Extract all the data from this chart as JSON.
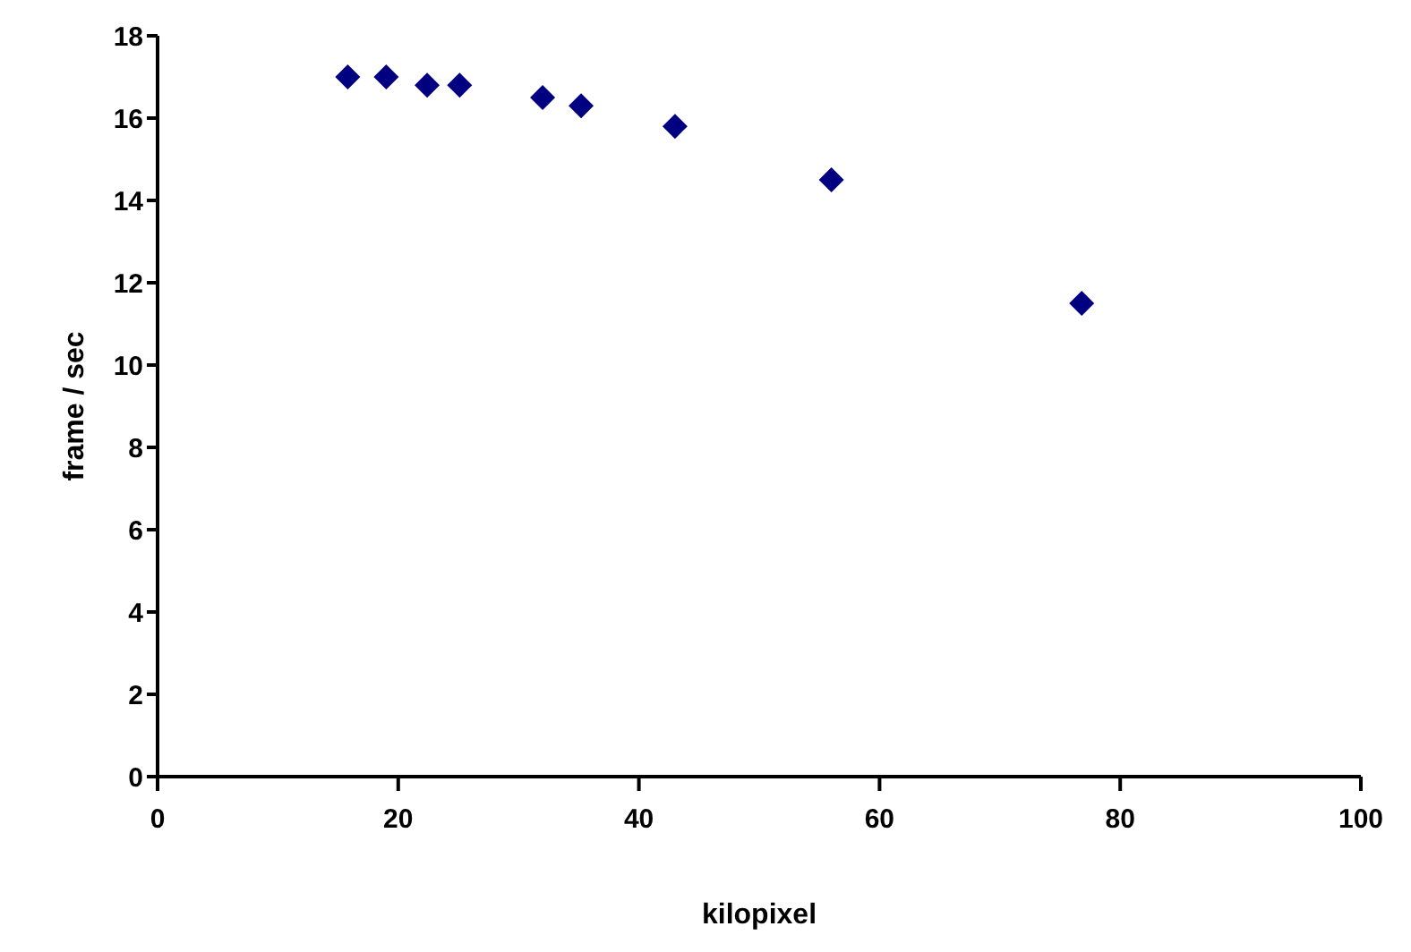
{
  "chart_data": {
    "type": "scatter",
    "xlabel": "kilopixel",
    "ylabel": "frame / sec",
    "x": [
      15.8,
      19.0,
      22.4,
      25.1,
      32.0,
      35.2,
      43.0,
      56.0,
      76.8
    ],
    "series": [
      {
        "color": "#000080",
        "values": [
          17.0,
          17.0,
          16.8,
          16.8,
          16.5,
          16.3,
          15.8,
          14.5,
          11.5
        ]
      }
    ],
    "xlim": [
      0,
      100
    ],
    "xticks": [
      0,
      20,
      40,
      60,
      80,
      100
    ],
    "ylim": [
      0,
      18
    ],
    "yticks": [
      0,
      2,
      4,
      6,
      8,
      10,
      12,
      14,
      16,
      18
    ],
    "marker": "diamond",
    "grid": false,
    "legend": false
  }
}
